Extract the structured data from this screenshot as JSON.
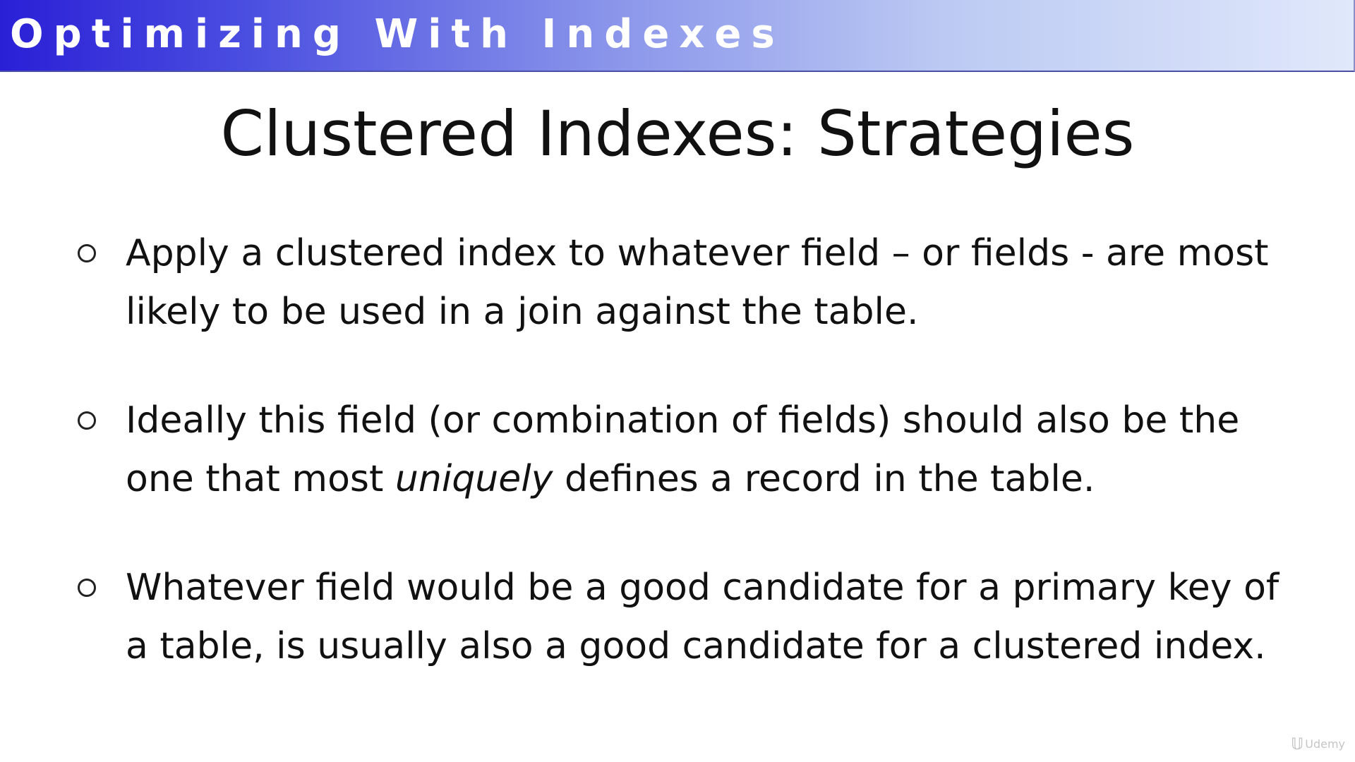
{
  "banner": {
    "title": "Optimizing With Indexes"
  },
  "slide": {
    "title": "Clustered Indexes: Strategies",
    "bullets": [
      {
        "text": "Apply a clustered index to whatever field – or fields - are most likely to be used in a join against the table."
      },
      {
        "before": "Ideally this field (or combination of fields) should also be the one that most ",
        "emphasis": "uniquely",
        "after": " defines a record in the table."
      },
      {
        "text": "Whatever field would be a good candidate for a primary key of a table, is usually also a good candidate for a clustered index."
      }
    ]
  },
  "watermark": {
    "icon": "udemy-logo-icon",
    "label": "Udemy"
  },
  "colors": {
    "banner_start": "#2a1fd6",
    "banner_end": "#e0e8fb",
    "text": "#111111"
  }
}
